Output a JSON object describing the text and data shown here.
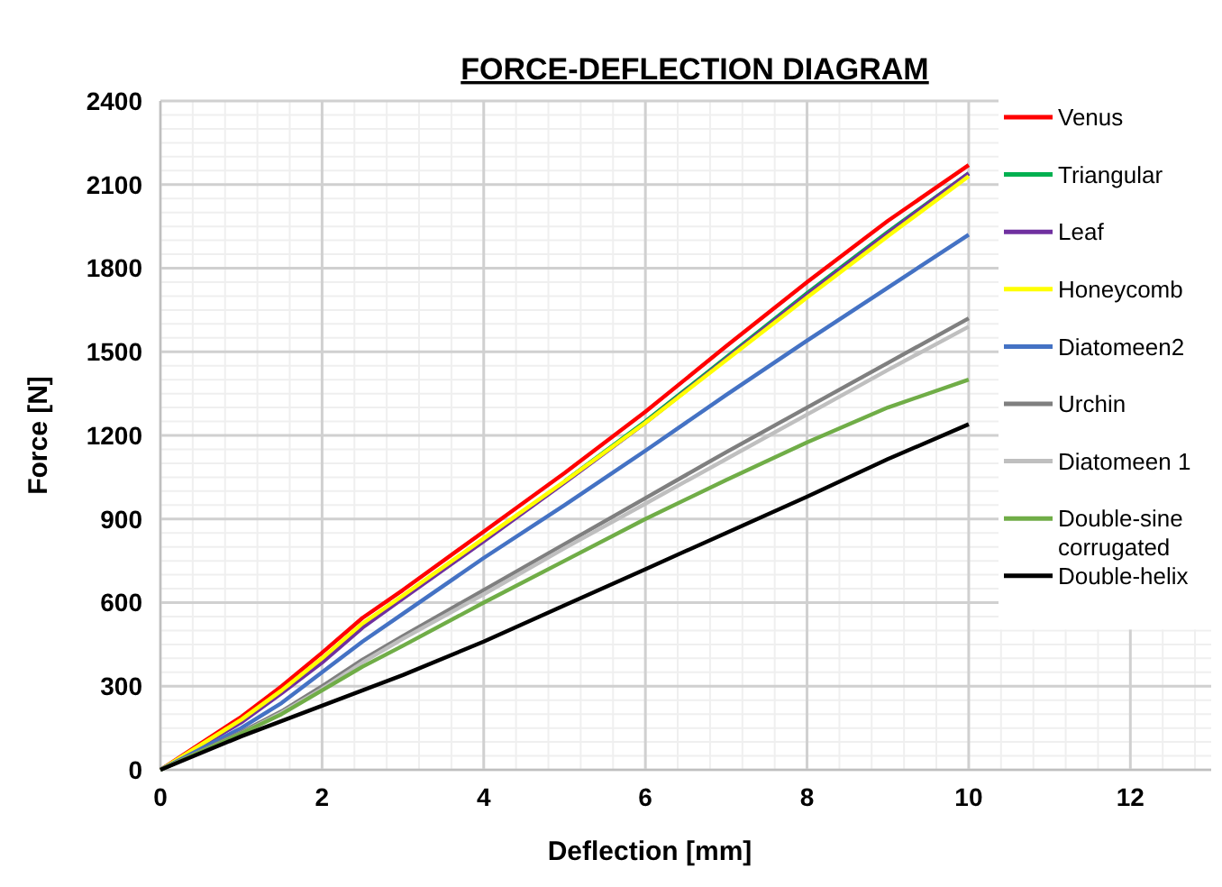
{
  "chart_data": {
    "type": "line",
    "title": "FORCE-DEFLECTION DIAGRAM",
    "xlabel": "Deflection [mm]",
    "ylabel": "Force [N]",
    "xlim": [
      0,
      13
    ],
    "xticks": [
      0,
      2,
      4,
      6,
      8,
      10,
      12
    ],
    "ylim": [
      0,
      2400
    ],
    "yticks": [
      0,
      300,
      600,
      900,
      1200,
      1500,
      1800,
      2100,
      2400
    ],
    "grid": true,
    "legend": "right",
    "line_style": "solid",
    "marker": "none",
    "series": [
      {
        "name": "Venus",
        "color": "#ff0000",
        "x": [
          0,
          1,
          1.5,
          2,
          2.5,
          3,
          4,
          5,
          6,
          7,
          8,
          9,
          10
        ],
        "values": [
          0,
          190,
          300,
          420,
          545,
          645,
          855,
          1065,
          1285,
          1520,
          1750,
          1970,
          2170
        ]
      },
      {
        "name": "Triangular",
        "color": "#00b050",
        "x": [
          5,
          6,
          7,
          8,
          9,
          10
        ],
        "values": [
          1035,
          1250,
          1480,
          1710,
          1930,
          2140
        ]
      },
      {
        "name": "Leaf",
        "color": "#7030a0",
        "x": [
          0,
          1,
          1.5,
          2,
          2.5,
          3,
          4,
          5,
          6,
          7,
          8,
          9,
          10
        ],
        "values": [
          0,
          170,
          275,
          385,
          510,
          615,
          820,
          1030,
          1245,
          1475,
          1705,
          1925,
          2140
        ]
      },
      {
        "name": "Honeycomb",
        "color": "#ffff00",
        "x": [
          0,
          1,
          1.5,
          2,
          2.5,
          3,
          4,
          5,
          6,
          7,
          8,
          9,
          10
        ],
        "values": [
          0,
          180,
          285,
          400,
          525,
          625,
          830,
          1035,
          1245,
          1470,
          1695,
          1915,
          2130
        ]
      },
      {
        "name": "Diatomeen2",
        "color": "#4472c4",
        "x": [
          0,
          1,
          1.5,
          2,
          2.5,
          3,
          4,
          5,
          6,
          7,
          8,
          9,
          10
        ],
        "values": [
          0,
          150,
          240,
          350,
          460,
          560,
          760,
          950,
          1145,
          1345,
          1540,
          1730,
          1920
        ]
      },
      {
        "name": "Urchin",
        "color": "#7f7f7f",
        "x": [
          0,
          1,
          1.5,
          2,
          2.5,
          3,
          4,
          5,
          6,
          7,
          8,
          9,
          10
        ],
        "values": [
          0,
          135,
          210,
          300,
          395,
          480,
          645,
          810,
          975,
          1140,
          1300,
          1460,
          1620
        ]
      },
      {
        "name": "Diatomeen 1",
        "color": "#bfbfbf",
        "x": [
          0,
          1,
          1.5,
          2,
          2.5,
          3,
          4,
          5,
          6,
          7,
          8,
          9,
          10
        ],
        "values": [
          0,
          130,
          205,
          290,
          385,
          470,
          630,
          795,
          955,
          1115,
          1275,
          1435,
          1590
        ]
      },
      {
        "name": "Double-sine corrugated",
        "color": "#70ad47",
        "x": [
          0,
          1,
          1.5,
          2,
          2.5,
          3,
          4,
          5,
          6,
          7,
          8,
          9,
          10
        ],
        "values": [
          0,
          130,
          200,
          285,
          370,
          445,
          600,
          750,
          900,
          1040,
          1175,
          1300,
          1400
        ]
      },
      {
        "name": "Double-helix",
        "color": "#000000",
        "x": [
          0,
          1,
          1.5,
          2,
          2.5,
          3,
          4,
          5,
          6,
          7,
          8,
          9,
          10
        ],
        "values": [
          0,
          120,
          175,
          230,
          285,
          340,
          460,
          590,
          720,
          850,
          980,
          1115,
          1240
        ]
      }
    ]
  }
}
